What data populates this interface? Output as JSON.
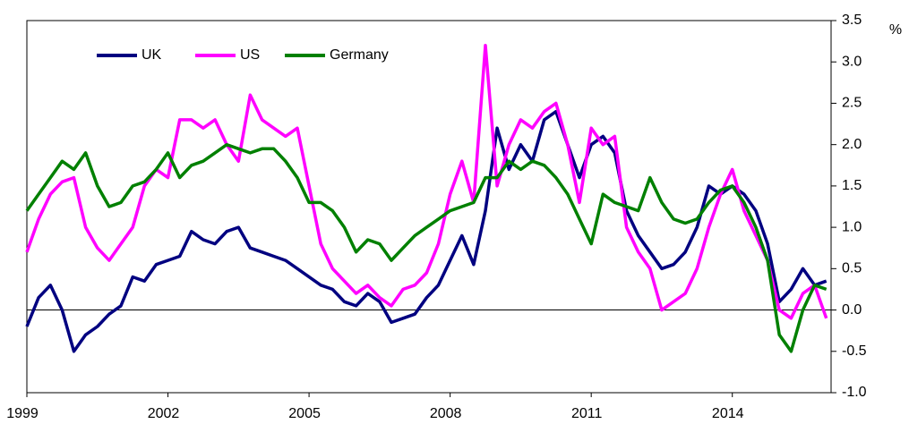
{
  "chart_data": {
    "type": "line",
    "y_label": "%",
    "x": [
      1999,
      1999.25,
      1999.5,
      1999.75,
      2000,
      2000.25,
      2000.5,
      2000.75,
      2001,
      2001.25,
      2001.5,
      2001.75,
      2002,
      2002.25,
      2002.5,
      2002.75,
      2003,
      2003.25,
      2003.5,
      2003.75,
      2004,
      2004.25,
      2004.5,
      2004.75,
      2005,
      2005.25,
      2005.5,
      2005.75,
      2006,
      2006.25,
      2006.5,
      2006.75,
      2007,
      2007.25,
      2007.5,
      2007.75,
      2008,
      2008.25,
      2008.5,
      2008.75,
      2009,
      2009.25,
      2009.5,
      2009.75,
      2010,
      2010.25,
      2010.5,
      2010.75,
      2011,
      2011.25,
      2011.5,
      2011.75,
      2012,
      2012.25,
      2012.5,
      2012.75,
      2013,
      2013.25,
      2013.5,
      2013.75,
      2014,
      2014.25,
      2014.5,
      2014.75,
      2015,
      2015.25,
      2015.5,
      2015.75,
      2016
    ],
    "series": [
      {
        "name": "UK",
        "color": "#000080",
        "values": [
          -0.2,
          0.15,
          0.3,
          0.0,
          -0.5,
          -0.3,
          -0.2,
          -0.05,
          0.05,
          0.4,
          0.35,
          0.55,
          0.6,
          0.65,
          0.95,
          0.85,
          0.8,
          0.95,
          1.0,
          0.75,
          0.7,
          0.65,
          0.6,
          0.5,
          0.4,
          0.3,
          0.25,
          0.1,
          0.05,
          0.2,
          0.1,
          -0.15,
          -0.1,
          -0.05,
          0.15,
          0.3,
          0.6,
          0.9,
          0.55,
          1.2,
          2.2,
          1.7,
          2.0,
          1.8,
          2.3,
          2.4,
          2.0,
          1.6,
          2.0,
          2.1,
          1.9,
          1.2,
          0.9,
          0.7,
          0.5,
          0.55,
          0.7,
          1.0,
          1.5,
          1.4,
          1.5,
          1.4,
          1.2,
          0.8,
          0.1,
          0.25,
          0.5,
          0.3,
          0.35
        ]
      },
      {
        "name": "US",
        "color": "#ff00ff",
        "values": [
          0.7,
          1.1,
          1.4,
          1.55,
          1.6,
          1.0,
          0.75,
          0.6,
          0.8,
          1.0,
          1.5,
          1.7,
          1.6,
          2.3,
          2.3,
          2.2,
          2.3,
          2.0,
          1.8,
          2.6,
          2.3,
          2.2,
          2.1,
          2.2,
          1.5,
          0.8,
          0.5,
          0.35,
          0.2,
          0.3,
          0.15,
          0.05,
          0.25,
          0.3,
          0.45,
          0.8,
          1.4,
          1.8,
          1.3,
          3.2,
          1.5,
          2.0,
          2.3,
          2.2,
          2.4,
          2.5,
          2.0,
          1.3,
          2.2,
          2.0,
          2.1,
          1.0,
          0.7,
          0.5,
          0.0,
          0.1,
          0.2,
          0.5,
          1.0,
          1.4,
          1.7,
          1.2,
          0.9,
          0.6,
          0.0,
          -0.1,
          0.2,
          0.3,
          -0.1
        ]
      },
      {
        "name": "Germany",
        "color": "#008000",
        "values": [
          1.2,
          1.4,
          1.6,
          1.8,
          1.7,
          1.9,
          1.5,
          1.25,
          1.3,
          1.5,
          1.55,
          1.7,
          1.9,
          1.6,
          1.75,
          1.8,
          1.9,
          2.0,
          1.95,
          1.9,
          1.95,
          1.95,
          1.8,
          1.6,
          1.3,
          1.3,
          1.2,
          1.0,
          0.7,
          0.85,
          0.8,
          0.6,
          0.75,
          0.9,
          1.0,
          1.1,
          1.2,
          1.25,
          1.3,
          1.6,
          1.6,
          1.8,
          1.7,
          1.8,
          1.75,
          1.6,
          1.4,
          1.1,
          0.8,
          1.4,
          1.3,
          1.25,
          1.2,
          1.6,
          1.3,
          1.1,
          1.05,
          1.1,
          1.3,
          1.45,
          1.5,
          1.3,
          1.0,
          0.6,
          -0.3,
          -0.5,
          0.0,
          0.3,
          0.25
        ]
      }
    ],
    "xlim": [
      1999,
      2016.1
    ],
    "xticks": [
      1999,
      2002,
      2005,
      2008,
      2011,
      2014
    ],
    "ylim": [
      -1.0,
      3.5
    ],
    "yticks": [
      {
        "value": -1.0,
        "label": "-1.0"
      },
      {
        "value": -0.5,
        "label": "-0.5"
      },
      {
        "value": 0,
        "label": "0.0"
      },
      {
        "value": 0.5,
        "label": "0.5"
      },
      {
        "value": 1.0,
        "label": "1.0"
      },
      {
        "value": 1.5,
        "label": "1.5"
      },
      {
        "value": 2.0,
        "label": "2.0"
      },
      {
        "value": 2.5,
        "label": "2.5"
      },
      {
        "value": 3.0,
        "label": "3.0"
      },
      {
        "value": 3.5,
        "label": "3.5"
      }
    ],
    "zero_line": true,
    "legend": "top-left"
  }
}
